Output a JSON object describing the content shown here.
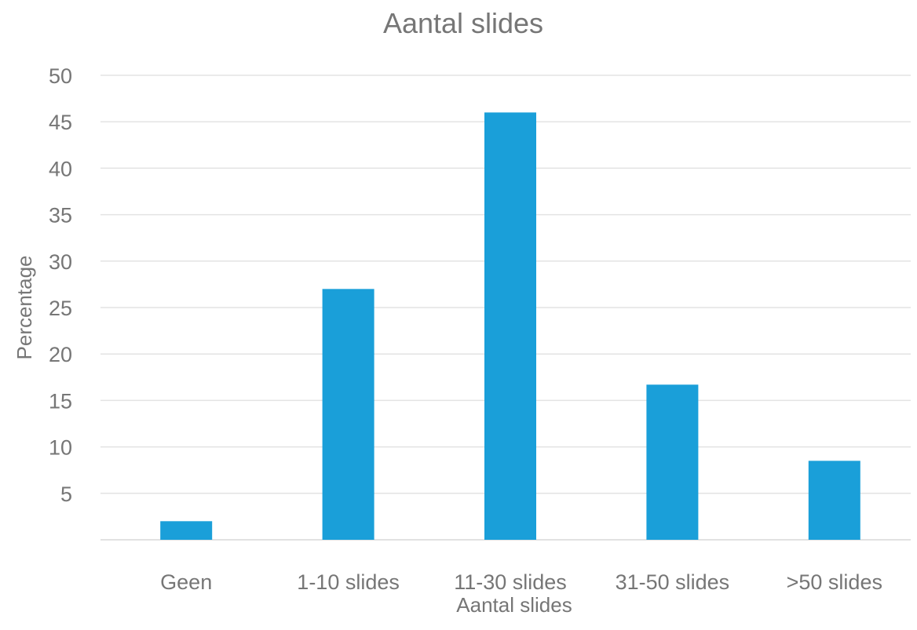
{
  "chart_data": {
    "type": "bar",
    "title": "Aantal slides",
    "xlabel": "Aantal slides",
    "ylabel": "Percentage",
    "categories": [
      "Geen",
      "1-10 slides",
      "11-30 slides",
      "31-50 slides",
      ">50 slides"
    ],
    "values": [
      2,
      27,
      46,
      16.7,
      8.5
    ],
    "ylim": [
      0,
      50
    ],
    "yticks": [
      5,
      10,
      15,
      20,
      25,
      30,
      35,
      40,
      45,
      50
    ],
    "grid": true,
    "legend": "none",
    "bar_color": "#1a9fd9"
  }
}
